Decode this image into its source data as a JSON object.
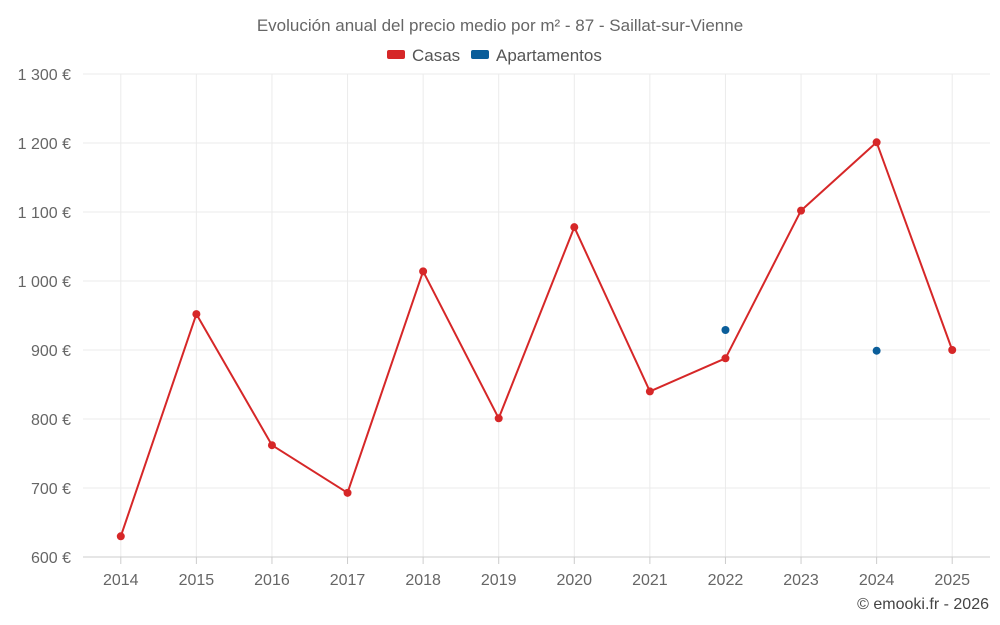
{
  "chart_data": {
    "type": "line",
    "title": "Evolución anual del precio medio por m² - 87 - Saillat-sur-Vienne",
    "categories": [
      "2014",
      "2015",
      "2016",
      "2017",
      "2018",
      "2019",
      "2020",
      "2021",
      "2022",
      "2023",
      "2024",
      "2025"
    ],
    "series": [
      {
        "name": "Casas",
        "color": "#d62728",
        "values": [
          630,
          952,
          762,
          693,
          1014,
          801,
          1078,
          840,
          888,
          1102,
          1201,
          900
        ]
      },
      {
        "name": "Apartamentos",
        "color": "#0b5e9a",
        "values": [
          null,
          null,
          null,
          null,
          null,
          null,
          null,
          null,
          929,
          null,
          899,
          null
        ]
      }
    ],
    "ylim": [
      600,
      1300
    ],
    "yticks": [
      600,
      700,
      800,
      900,
      1000,
      1100,
      1200,
      1300
    ],
    "ytick_labels": [
      "600 €",
      "700 €",
      "800 €",
      "900 €",
      "1 000 €",
      "1 100 €",
      "1 200 €",
      "1 300 €"
    ],
    "xlabel": "",
    "ylabel": "",
    "grid": true,
    "legend_position": "top-center"
  },
  "credit": "© emooki.fr - 2026"
}
